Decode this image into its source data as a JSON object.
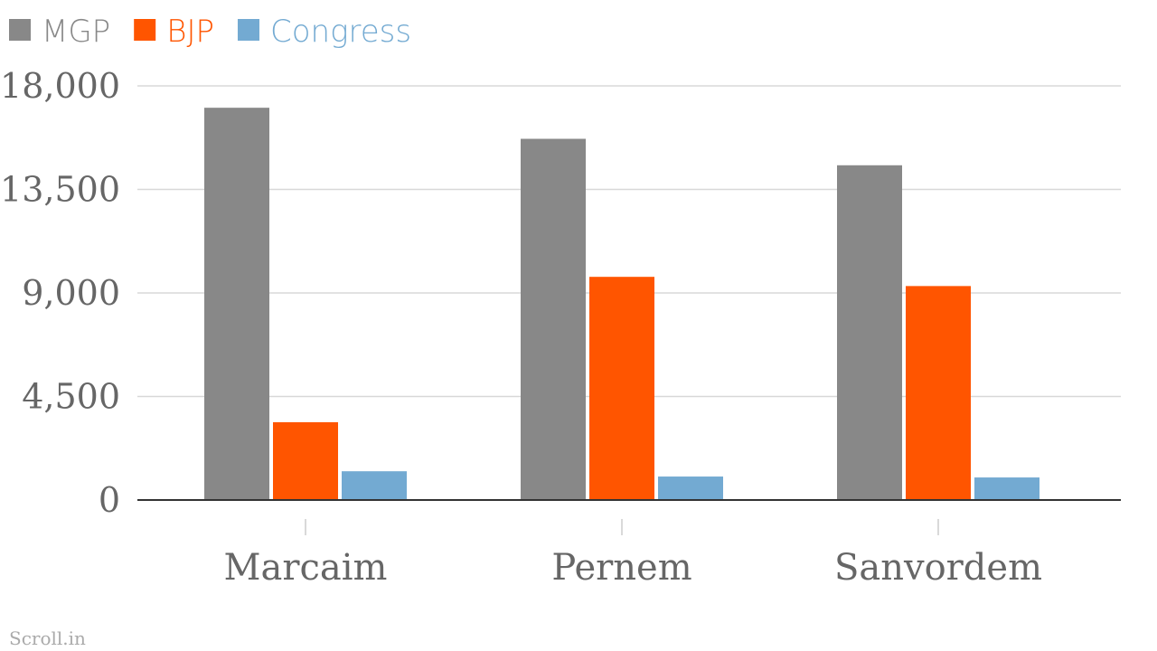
{
  "chart_data": {
    "type": "bar",
    "categories": [
      "Marcaim",
      "Pernem",
      "Sanvordem"
    ],
    "series": [
      {
        "name": "MGP",
        "color": "#888888",
        "values": [
          17050,
          15700,
          14550
        ]
      },
      {
        "name": "BJP",
        "color": "#ff5500",
        "values": [
          3380,
          9700,
          9300
        ]
      },
      {
        "name": "Congress",
        "color": "#73aad2",
        "values": [
          1250,
          1020,
          980
        ]
      }
    ],
    "ylim": [
      0,
      18000
    ],
    "yticks": [
      0,
      {
        "value": 4500,
        "label": "4,500"
      },
      {
        "value": 9000,
        "label": "9,000"
      },
      {
        "value": 13500,
        "label": "13,500"
      },
      {
        "value": 18000,
        "label": "18,000"
      }
    ],
    "grid": true,
    "legend": "top-left",
    "source": "Scroll.in"
  }
}
